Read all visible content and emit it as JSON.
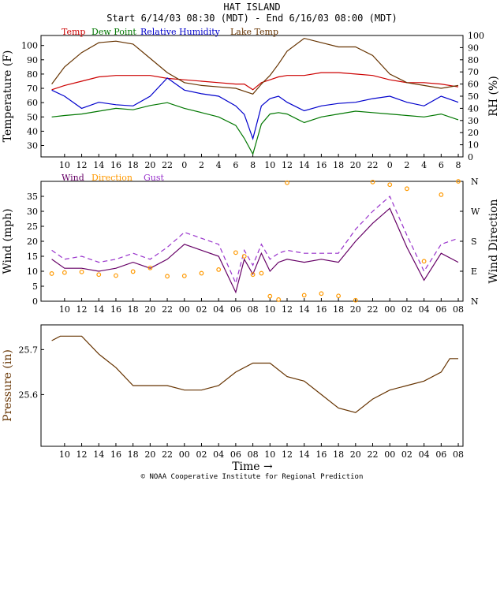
{
  "header": {
    "station": "HAT ISLAND",
    "period": "Start 6/14/03 08:30 (MDT) - End 6/16/03 08:00 (MDT)"
  },
  "footer": {
    "credit": "© NOAA Cooperative Institute for Regional Prediction",
    "time_label": "Time →"
  },
  "colors": {
    "temp": "#cc0000",
    "dewpoint": "#007700",
    "rh": "#0000cc",
    "lake": "#663300",
    "wind": "#660066",
    "direction": "#ff9900",
    "gust": "#9933cc",
    "pressure": "#663300"
  },
  "time_ticks": [
    "10",
    "12",
    "14",
    "16",
    "18",
    "20",
    "22",
    "0",
    "2",
    "4",
    "6",
    "8",
    "10",
    "12",
    "14",
    "16",
    "18",
    "20",
    "22",
    "0",
    "2",
    "4",
    "6",
    "8"
  ],
  "time_ticks_padded": [
    "10",
    "12",
    "14",
    "16",
    "18",
    "20",
    "22",
    "00",
    "02",
    "04",
    "06",
    "08",
    "10",
    "12",
    "14",
    "16",
    "18",
    "20",
    "22",
    "00",
    "02",
    "04",
    "06",
    "08"
  ],
  "chart_data": [
    {
      "type": "line",
      "x_hours": [
        0.0,
        1.5,
        3.5,
        5.5,
        7.5,
        9.5,
        11.5,
        13.5,
        15.5,
        17.5,
        19.5,
        21.5,
        22.5,
        23.5,
        24.5,
        25.5,
        26.5,
        27.5,
        29.5,
        31.5,
        33.5,
        35.5,
        37.5,
        39.5,
        41.5,
        43.5,
        45.5,
        47.5
      ],
      "ylabel_left": "Temperature (F)",
      "ylabel_right": "RH (%)",
      "ylim_left": [
        22,
        107
      ],
      "ylim_right": [
        0,
        100
      ],
      "left_ticks": [
        30,
        40,
        50,
        60,
        70,
        80,
        90,
        100
      ],
      "right_ticks": [
        0,
        10,
        20,
        30,
        40,
        50,
        60,
        70,
        80,
        90,
        100
      ],
      "legend": [
        "Temp",
        "Dew Point",
        "Relative Humidity",
        "Lake Temp"
      ],
      "series": [
        {
          "name": "Temp",
          "axis": "left",
          "values": [
            69,
            72,
            75,
            78,
            79,
            79,
            79,
            77,
            76,
            75,
            74,
            73,
            73,
            69,
            74,
            76,
            78,
            79,
            79,
            81,
            81,
            80,
            79,
            76,
            74,
            74,
            73,
            71
          ]
        },
        {
          "name": "Dew Point",
          "axis": "left",
          "values": [
            50,
            51,
            52,
            54,
            56,
            55,
            58,
            60,
            56,
            53,
            50,
            44,
            35,
            24,
            45,
            52,
            53,
            52,
            46,
            50,
            52,
            54,
            53,
            52,
            51,
            50,
            52,
            48
          ]
        },
        {
          "name": "Relative Humidity",
          "axis": "right",
          "values": [
            55,
            50,
            40,
            45,
            43,
            42,
            50,
            65,
            55,
            52,
            50,
            42,
            35,
            15,
            42,
            48,
            50,
            45,
            38,
            42,
            44,
            45,
            48,
            50,
            45,
            42,
            50,
            45
          ]
        },
        {
          "name": "Lake Temp",
          "axis": "left",
          "values": [
            73,
            85,
            95,
            102,
            103,
            101,
            91,
            81,
            74,
            72,
            71,
            70,
            68,
            66,
            73,
            79,
            87,
            96,
            105,
            102,
            99,
            99,
            93,
            80,
            74,
            72,
            70,
            72
          ]
        }
      ]
    },
    {
      "type": "line",
      "x_hours": [
        0.0,
        1.5,
        3.5,
        5.5,
        7.5,
        9.5,
        11.5,
        13.5,
        15.5,
        17.5,
        19.5,
        21.5,
        22.5,
        23.5,
        24.5,
        25.5,
        26.5,
        27.5,
        29.5,
        31.5,
        33.5,
        35.5,
        37.5,
        39.5,
        41.5,
        43.5,
        45.5,
        47.5
      ],
      "ylabel_left": "Wind (mph)",
      "ylabel_right": "Wind Direction",
      "ylim_left": [
        0,
        40
      ],
      "left_ticks": [
        0,
        5,
        10,
        15,
        20,
        25,
        30,
        35
      ],
      "right_ticks": [
        "N",
        "E",
        "S",
        "W",
        "N"
      ],
      "legend": [
        "Wind",
        "Direction",
        "Gust"
      ],
      "series": [
        {
          "name": "Wind",
          "axis": "left",
          "values": [
            14,
            11,
            11,
            10,
            11,
            13,
            11,
            14,
            19,
            17,
            15,
            3,
            14,
            9,
            16,
            10,
            13,
            14,
            13,
            14,
            13,
            20,
            26,
            31,
            18,
            7,
            16,
            13
          ]
        },
        {
          "name": "Gust",
          "axis": "left",
          "values": [
            17,
            14,
            15,
            13,
            14,
            16,
            14,
            18,
            23,
            21,
            19,
            6,
            17,
            12,
            19,
            14,
            16,
            17,
            16,
            16,
            16,
            24,
            30,
            35,
            22,
            10,
            19,
            21
          ]
        },
        {
          "name": "Direction",
          "axis": "right",
          "values": [
            83,
            86,
            88,
            80,
            77,
            89,
            100,
            75,
            76,
            84,
            95,
            146,
            135,
            80,
            84,
            15,
            5,
            356,
            18,
            23,
            16,
            3,
            358,
            350,
            338,
            120,
            320,
            360
          ]
        }
      ]
    },
    {
      "type": "line",
      "ylabel_left": "Pressure (in)",
      "ylim_left": [
        25.485,
        25.755
      ],
      "left_ticks": [
        "25.6",
        "25.7"
      ],
      "xlabel": "Time →",
      "series": [
        {
          "name": "Pressure",
          "axis": "left",
          "x_hours": [
            0.0,
            1.0,
            3.5,
            5.5,
            7.5,
            9.5,
            11.5,
            13.5,
            15.5,
            17.5,
            19.5,
            21.5,
            23.5,
            25.5,
            27.5,
            29.5,
            31.5,
            33.5,
            35.5,
            37.5,
            39.5,
            41.5,
            43.5,
            45.5,
            46.5,
            47.5
          ],
          "values": [
            25.72,
            25.73,
            25.73,
            25.69,
            25.66,
            25.62,
            25.62,
            25.62,
            25.61,
            25.61,
            25.62,
            25.65,
            25.67,
            25.67,
            25.64,
            25.63,
            25.6,
            25.57,
            25.56,
            25.59,
            25.61,
            25.62,
            25.63,
            25.65,
            25.68,
            25.68
          ]
        }
      ]
    }
  ]
}
